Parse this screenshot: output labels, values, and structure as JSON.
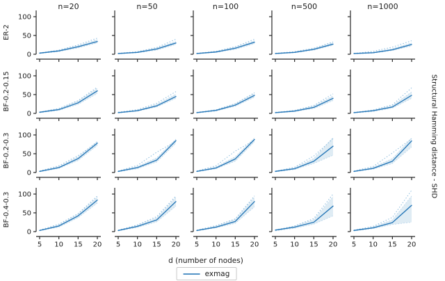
{
  "figure": {
    "xlabel": "d (number of nodes)",
    "right_ylabel": "Structural Hamming distance - SHD",
    "legend": {
      "label": "exmag"
    },
    "colors": {
      "mean_line": "#2878b8",
      "band_fill": "#1f77b4",
      "band_edge": "#aecfe9",
      "dotted_line": "#8abbde",
      "axis": "#262626",
      "text": "#1a1a1a",
      "legend_border": "#c9c9c9"
    }
  },
  "chart_data": {
    "type": "line",
    "title": "",
    "xlabel": "d (number of nodes)",
    "ylabel": "Structural Hamming distance - SHD",
    "x": [
      5,
      10,
      15,
      20
    ],
    "x_tick_labels": [
      "5",
      "10",
      "15",
      "20"
    ],
    "y_ticks": [
      0,
      50,
      100
    ],
    "y_tick_labels": [
      "0",
      "50",
      "100"
    ],
    "ylim": [
      0,
      116
    ],
    "grid": false,
    "legend_position": "bottom-center",
    "series_names": [
      "exmag"
    ],
    "col_titles": [
      "n=20",
      "n=50",
      "n=100",
      "n=500",
      "n=1000"
    ],
    "row_labels": [
      "ER-2",
      "BF-0.2-0.15",
      "BF-0.2-0.3",
      "BF-0.4-0.3"
    ],
    "subplots": [
      [
        {
          "mean": [
            3,
            9,
            20,
            34
          ],
          "band_low": [
            2,
            7,
            17,
            30
          ],
          "band_high": [
            4,
            11,
            23,
            39
          ],
          "dotted": [
            3,
            11,
            25,
            43
          ]
        },
        {
          "mean": [
            2,
            5,
            14,
            30
          ],
          "band_low": [
            1,
            4,
            11,
            26
          ],
          "band_high": [
            3,
            7,
            17,
            34
          ],
          "dotted": [
            2,
            7,
            18,
            40
          ]
        },
        {
          "mean": [
            2,
            6,
            16,
            32
          ],
          "band_low": [
            1,
            5,
            13,
            28
          ],
          "band_high": [
            3,
            8,
            19,
            36
          ],
          "dotted": [
            2,
            8,
            20,
            40
          ]
        },
        {
          "mean": [
            2,
            5,
            13,
            27
          ],
          "band_low": [
            1,
            4,
            11,
            24
          ],
          "band_high": [
            3,
            7,
            16,
            31
          ],
          "dotted": [
            2,
            7,
            16,
            33
          ]
        },
        {
          "mean": [
            2,
            4,
            12,
            26
          ],
          "band_low": [
            1,
            3,
            10,
            22
          ],
          "band_high": [
            3,
            6,
            15,
            30
          ],
          "dotted": [
            2,
            8,
            19,
            36
          ]
        }
      ],
      [
        {
          "mean": [
            3,
            10,
            28,
            60
          ],
          "band_low": [
            2,
            8,
            24,
            53
          ],
          "band_high": [
            4,
            13,
            33,
            67
          ],
          "dotted": [
            3,
            13,
            34,
            70
          ]
        },
        {
          "mean": [
            2,
            7,
            20,
            45
          ],
          "band_low": [
            1,
            6,
            17,
            40
          ],
          "band_high": [
            3,
            9,
            24,
            51
          ],
          "dotted": [
            3,
            10,
            27,
            58
          ]
        },
        {
          "mean": [
            2,
            8,
            22,
            48
          ],
          "band_low": [
            1,
            6,
            19,
            43
          ],
          "band_high": [
            3,
            10,
            26,
            53
          ],
          "dotted": [
            2,
            9,
            26,
            55
          ]
        },
        {
          "mean": [
            2,
            6,
            16,
            40
          ],
          "band_low": [
            1,
            5,
            13,
            34
          ],
          "band_high": [
            3,
            8,
            20,
            46
          ],
          "dotted": [
            2,
            8,
            21,
            52
          ]
        },
        {
          "mean": [
            2,
            7,
            17,
            48
          ],
          "band_low": [
            1,
            5,
            14,
            40
          ],
          "band_high": [
            3,
            9,
            21,
            57
          ],
          "dotted": [
            2,
            9,
            23,
            68
          ]
        }
      ],
      [
        {
          "mean": [
            3,
            13,
            37,
            78
          ],
          "band_low": [
            2,
            11,
            32,
            72
          ],
          "band_high": [
            4,
            16,
            42,
            83
          ],
          "dotted": [
            4,
            18,
            45,
            80
          ]
        },
        {
          "mean": [
            3,
            13,
            33,
            85
          ],
          "band_low": [
            2,
            10,
            28,
            78
          ],
          "band_high": [
            4,
            16,
            39,
            89
          ],
          "dotted": [
            4,
            19,
            54,
            83
          ]
        },
        {
          "mean": [
            3,
            12,
            36,
            88
          ],
          "band_low": [
            2,
            10,
            30,
            82
          ],
          "band_high": [
            4,
            15,
            42,
            92
          ],
          "dotted": [
            4,
            18,
            57,
            86
          ]
        },
        {
          "mean": [
            3,
            10,
            30,
            70
          ],
          "band_low": [
            2,
            8,
            24,
            46
          ],
          "band_high": [
            4,
            13,
            37,
            93
          ],
          "dotted": [
            3,
            14,
            44,
            90
          ]
        },
        {
          "mean": [
            3,
            11,
            30,
            84
          ],
          "band_low": [
            2,
            9,
            24,
            68
          ],
          "band_high": [
            4,
            14,
            37,
            92
          ],
          "dotted": [
            4,
            16,
            52,
            90
          ]
        }
      ],
      [
        {
          "mean": [
            3,
            15,
            42,
            84
          ],
          "band_low": [
            2,
            12,
            37,
            76
          ],
          "band_high": [
            4,
            18,
            47,
            92
          ],
          "dotted": [
            4,
            20,
            48,
            95
          ]
        },
        {
          "mean": [
            3,
            14,
            31,
            80
          ],
          "band_low": [
            2,
            11,
            26,
            68
          ],
          "band_high": [
            4,
            17,
            37,
            92
          ],
          "dotted": [
            4,
            18,
            40,
            95
          ]
        },
        {
          "mean": [
            3,
            12,
            27,
            80
          ],
          "band_low": [
            2,
            10,
            22,
            66
          ],
          "band_high": [
            4,
            15,
            33,
            92
          ],
          "dotted": [
            4,
            16,
            34,
            95
          ]
        },
        {
          "mean": [
            4,
            12,
            25,
            68
          ],
          "band_low": [
            2,
            9,
            20,
            42
          ],
          "band_high": [
            5,
            15,
            32,
            93
          ],
          "dotted": [
            4,
            15,
            35,
            100
          ]
        },
        {
          "mean": [
            3,
            10,
            24,
            70
          ],
          "band_low": [
            2,
            8,
            19,
            25
          ],
          "band_high": [
            4,
            13,
            31,
            95
          ],
          "dotted": [
            4,
            14,
            38,
            110
          ]
        }
      ]
    ]
  }
}
